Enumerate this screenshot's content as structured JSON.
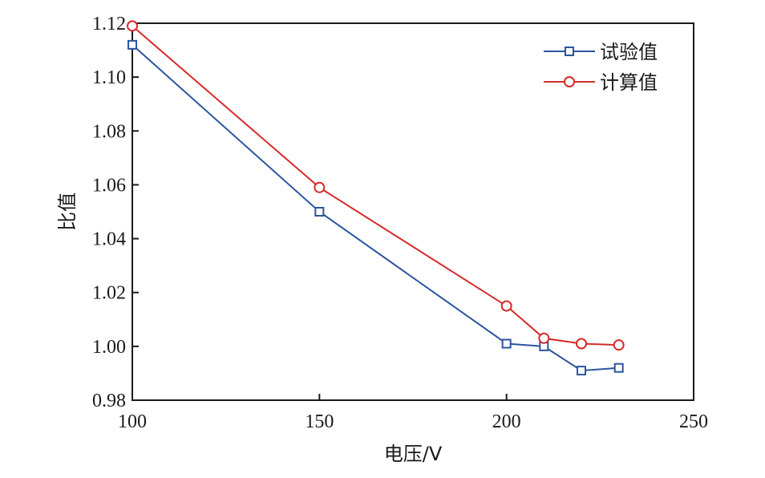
{
  "chart_data": {
    "type": "line",
    "xlabel": "电压/V",
    "ylabel": "比值",
    "xlim": [
      100,
      250
    ],
    "ylim": [
      0.98,
      1.12
    ],
    "xticks": [
      100,
      150,
      200,
      250
    ],
    "xtick_labels": [
      "100",
      "150",
      "200",
      "250"
    ],
    "yticks": [
      0.98,
      1.0,
      1.02,
      1.04,
      1.06,
      1.08,
      1.1,
      1.12
    ],
    "ytick_labels": [
      "0.98",
      "1.00",
      "1.02",
      "1.04",
      "1.06",
      "1.08",
      "1.10",
      "1.12"
    ],
    "grid": false,
    "legend_position": "top-right",
    "series": [
      {
        "name": "试验值",
        "color": "#2b55a0",
        "marker": "square",
        "x": [
          100,
          150,
          200,
          210,
          220,
          230
        ],
        "y": [
          1.112,
          1.05,
          1.001,
          1.0,
          0.991,
          0.992
        ]
      },
      {
        "name": "计算值",
        "color": "#d62a2a",
        "marker": "circle",
        "x": [
          100,
          150,
          200,
          210,
          220,
          230
        ],
        "y": [
          1.119,
          1.059,
          1.015,
          1.003,
          1.001,
          1.0005
        ]
      }
    ]
  }
}
